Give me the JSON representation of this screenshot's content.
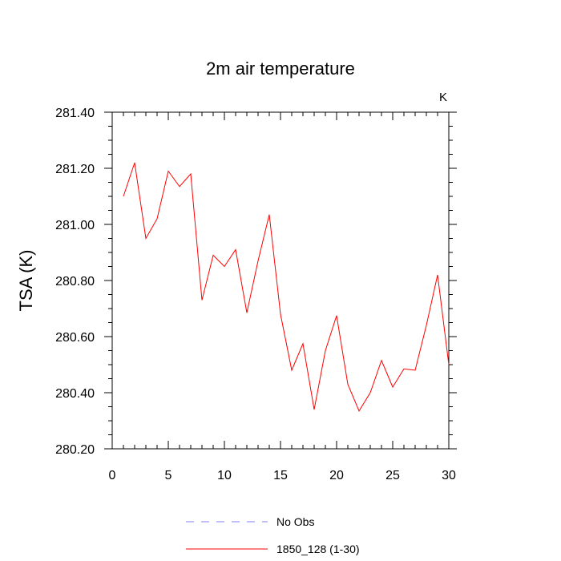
{
  "chart_data": {
    "type": "line",
    "title": "2m air temperature",
    "xlabel": "",
    "ylabel": "TSA  (K)",
    "units_label": "K",
    "xlim": [
      0,
      30
    ],
    "ylim": [
      280.2,
      281.4
    ],
    "x_ticks": [
      "0",
      "5",
      "10",
      "15",
      "20",
      "25",
      "30"
    ],
    "y_ticks": [
      "280.20",
      "280.40",
      "280.60",
      "280.80",
      "281.00",
      "281.20",
      "281.40"
    ],
    "grid": false,
    "legend_position": "bottom",
    "series": [
      {
        "name": "No Obs",
        "color": "#8080ff",
        "dash": "dashed",
        "x": [],
        "values": []
      },
      {
        "name": "1850_128 (1-30)",
        "color": "#ff0000",
        "dash": "solid",
        "x": [
          1,
          2,
          3,
          4,
          5,
          6,
          7,
          8,
          9,
          10,
          11,
          12,
          13,
          14,
          15,
          16,
          17,
          18,
          19,
          20,
          21,
          22,
          23,
          24,
          25,
          26,
          27,
          28,
          29,
          30
        ],
        "values": [
          281.1,
          281.22,
          280.95,
          281.02,
          281.19,
          281.135,
          281.18,
          280.73,
          280.89,
          280.85,
          280.91,
          280.685,
          280.87,
          281.035,
          280.68,
          280.48,
          280.575,
          280.34,
          280.55,
          280.675,
          280.43,
          280.335,
          280.4,
          280.515,
          280.42,
          280.485,
          280.48,
          280.64,
          280.82,
          280.5
        ]
      }
    ]
  }
}
